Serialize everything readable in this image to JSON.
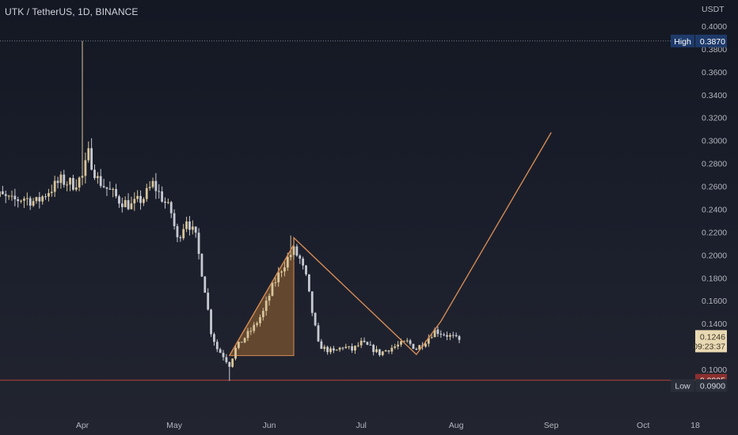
{
  "header": {
    "title": "UTK / TetherUS, 1D, BINANCE"
  },
  "colors": {
    "up": "#d7c49a",
    "down": "#c7cad2",
    "pattern_line": "#d38a55",
    "pattern_fill": "#7b5530",
    "low_line": "#b4433e",
    "high_tag": "#1e3a6a",
    "current_tag": "#e9d9b3",
    "low_tag": "#8b2f2f"
  },
  "chart_data": {
    "type": "candlestick",
    "title": "UTK / TetherUS, 1D, BINANCE",
    "currency_label": "USDT",
    "x_ticks": [
      "Apr",
      "May",
      "Jun",
      "Jul",
      "Aug",
      "Sep",
      "Oct",
      "18"
    ],
    "x_tick_dates": [
      "2021-04-01",
      "2021-05-01",
      "2021-06-01",
      "2021-07-01",
      "2021-08-01",
      "2021-09-01",
      "2021-10-01",
      "2021-10-18"
    ],
    "ylim": [
      0.09,
      0.4
    ],
    "y_ticks": [
      0.4,
      0.38,
      0.36,
      0.34,
      0.32,
      0.3,
      0.28,
      0.26,
      0.24,
      0.22,
      0.2,
      0.18,
      0.16,
      0.14,
      0.12,
      0.1
    ],
    "y_tick_labels": [
      "0.4000",
      "0.3800",
      "0.3600",
      "0.3400",
      "0.3200",
      "0.3000",
      "0.2800",
      "0.2600",
      "0.2400",
      "0.2200",
      "0.2000",
      "0.1800",
      "0.1600",
      "0.1400",
      "0.1200",
      "0.1000"
    ],
    "high": {
      "label": "High",
      "value": 0.387,
      "display": "0.3870"
    },
    "low": {
      "label": "Low",
      "value": 0.09,
      "display": "0.0900"
    },
    "current": {
      "value": 0.1246,
      "display": "0.1246",
      "countdown": "09:23:37"
    },
    "support": {
      "value": 0.0905,
      "display": "0.0905"
    },
    "price_path": [
      [
        "2021-03-01",
        0.245
      ],
      [
        "2021-03-05",
        0.252
      ],
      [
        "2021-03-09",
        0.247
      ],
      [
        "2021-03-13",
        0.25
      ],
      [
        "2021-03-17",
        0.246
      ],
      [
        "2021-03-21",
        0.256
      ],
      [
        "2021-03-25",
        0.265
      ],
      [
        "2021-03-29",
        0.262
      ],
      [
        "2021-04-01",
        0.268
      ],
      [
        "2021-04-03",
        0.288
      ],
      [
        "2021-04-06",
        0.266
      ],
      [
        "2021-04-09",
        0.258
      ],
      [
        "2021-04-13",
        0.248
      ],
      [
        "2021-04-17",
        0.243
      ],
      [
        "2021-04-21",
        0.25
      ],
      [
        "2021-04-24",
        0.262
      ],
      [
        "2021-04-27",
        0.25
      ],
      [
        "2021-04-30",
        0.237
      ],
      [
        "2021-05-02",
        0.213
      ],
      [
        "2021-05-05",
        0.232
      ],
      [
        "2021-05-08",
        0.215
      ],
      [
        "2021-05-11",
        0.17
      ],
      [
        "2021-05-13",
        0.133
      ],
      [
        "2021-05-15",
        0.118
      ],
      [
        "2021-05-17",
        0.112
      ],
      [
        "2021-05-19",
        0.104
      ],
      [
        "2021-05-21",
        0.118
      ],
      [
        "2021-05-24",
        0.128
      ],
      [
        "2021-05-27",
        0.137
      ],
      [
        "2021-05-30",
        0.15
      ],
      [
        "2021-06-02",
        0.172
      ],
      [
        "2021-06-05",
        0.188
      ],
      [
        "2021-06-07",
        0.197
      ],
      [
        "2021-06-09",
        0.204
      ],
      [
        "2021-06-11",
        0.196
      ],
      [
        "2021-06-13",
        0.18
      ],
      [
        "2021-06-15",
        0.15
      ],
      [
        "2021-06-17",
        0.122
      ],
      [
        "2021-06-19",
        0.118
      ],
      [
        "2021-06-22",
        0.115
      ],
      [
        "2021-06-25",
        0.12
      ],
      [
        "2021-06-28",
        0.117
      ],
      [
        "2021-07-01",
        0.123
      ],
      [
        "2021-07-04",
        0.119
      ],
      [
        "2021-07-07",
        0.114
      ],
      [
        "2021-07-10",
        0.118
      ],
      [
        "2021-07-13",
        0.121
      ],
      [
        "2021-07-16",
        0.124
      ],
      [
        "2021-07-19",
        0.118
      ],
      [
        "2021-07-22",
        0.125
      ],
      [
        "2021-07-25",
        0.134
      ],
      [
        "2021-07-28",
        0.131
      ],
      [
        "2021-07-31",
        0.128
      ],
      [
        "2021-08-02",
        0.1246
      ]
    ],
    "spikes": [
      {
        "date": "2021-04-01",
        "high": 0.387
      },
      {
        "date": "2021-04-04",
        "high": 0.302
      },
      {
        "date": "2021-06-08",
        "high": 0.217
      },
      {
        "date": "2021-05-19",
        "low": 0.09
      }
    ],
    "pattern": {
      "triangle": [
        [
          "2021-05-19",
          0.112
        ],
        [
          "2021-06-09",
          0.209
        ],
        [
          "2021-06-09",
          0.112
        ]
      ],
      "path": [
        [
          "2021-05-19",
          0.112
        ],
        [
          "2021-06-09",
          0.209
        ],
        [
          "2021-06-09",
          0.215
        ],
        [
          "2021-07-19",
          0.113
        ],
        [
          "2021-07-27",
          0.142
        ],
        [
          "2021-09-01",
          0.307
        ]
      ]
    }
  }
}
